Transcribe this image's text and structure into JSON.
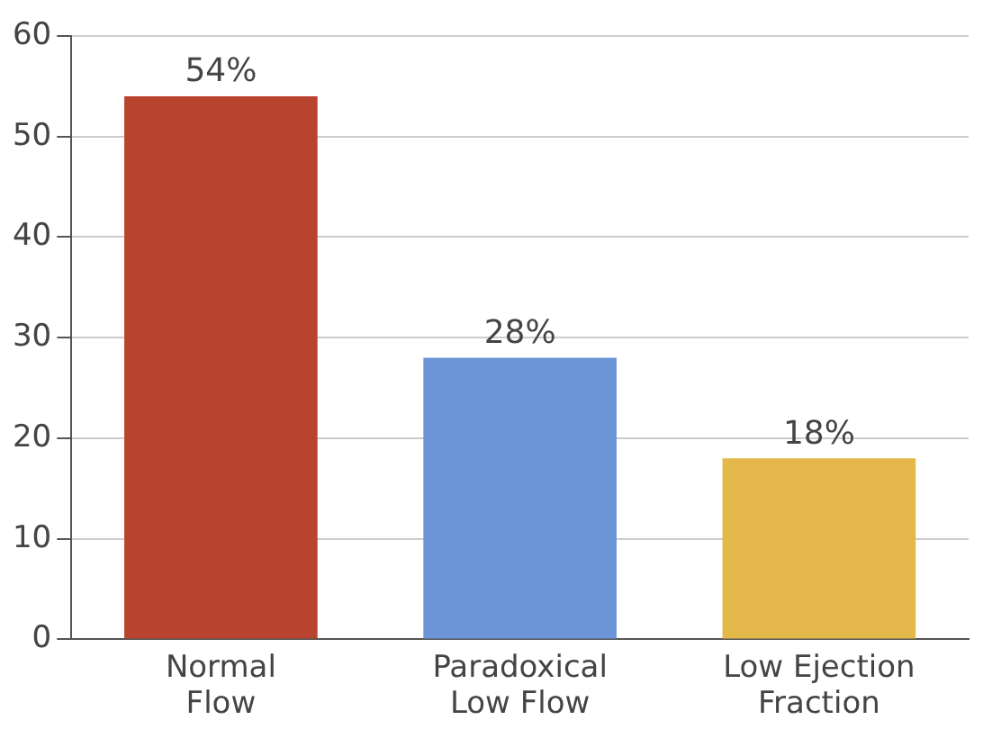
{
  "chart_data": {
    "type": "bar",
    "categories": [
      "Normal Flow",
      "Paradoxical Low Flow",
      "Low Ejection Fraction"
    ],
    "values": [
      54,
      28,
      18
    ],
    "colors": [
      "#b8432f",
      "#6b95d6",
      "#e4b84a"
    ],
    "value_labels": [
      "54%",
      "28%",
      "18%"
    ],
    "ylim": [
      0,
      60
    ],
    "yticks": [
      0,
      10,
      20,
      30,
      40,
      50,
      60
    ],
    "grid": "y",
    "legend": false
  }
}
